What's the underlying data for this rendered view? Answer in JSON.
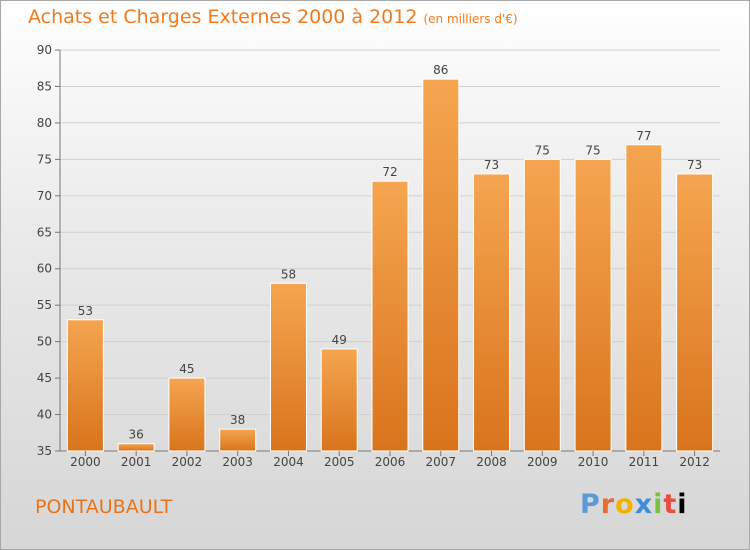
{
  "header": {
    "title": "Achats et Charges Externes 2000 à 2012",
    "unit": "(en milliers d'€)"
  },
  "footer": {
    "place": "PONTAUBAULT",
    "brand": "Proxiti"
  },
  "colors": {
    "bar_top": "#f5a550",
    "bar_bottom": "#d9741c",
    "title": "#f07a1c"
  },
  "chart_data": {
    "type": "bar",
    "title": "Achats et Charges Externes 2000 à 2012",
    "categories": [
      "2000",
      "2001",
      "2002",
      "2003",
      "2004",
      "2005",
      "2006",
      "2007",
      "2008",
      "2009",
      "2010",
      "2011",
      "2012"
    ],
    "values": [
      53,
      36,
      45,
      38,
      58,
      49,
      72,
      86,
      73,
      75,
      75,
      77,
      73
    ],
    "ylim": [
      35,
      90
    ],
    "yticks": [
      35,
      40,
      45,
      50,
      55,
      60,
      65,
      70,
      75,
      80,
      85,
      90
    ],
    "grid": true
  }
}
